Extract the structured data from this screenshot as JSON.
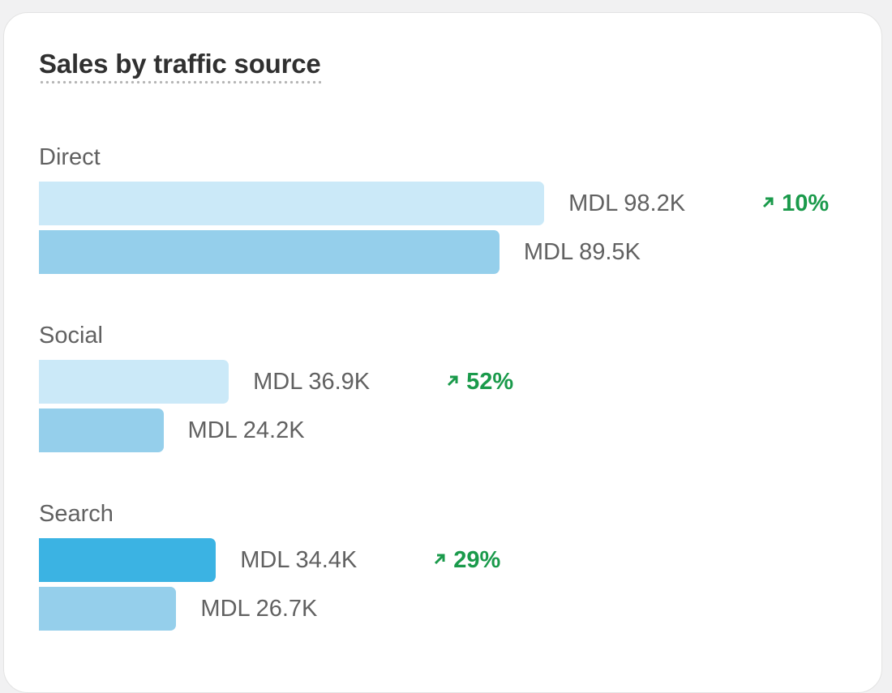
{
  "chart_data": {
    "type": "bar",
    "orientation": "horizontal",
    "title": "Sales by traffic source",
    "currency": "MDL",
    "categories": [
      "Direct",
      "Social",
      "Search"
    ],
    "series": [
      {
        "values": [
          98.2,
          36.9,
          34.4
        ],
        "labels": [
          "MDL 98.2K",
          "MDL 36.9K",
          "MDL 34.4K"
        ]
      },
      {
        "values": [
          89.5,
          24.2,
          26.7
        ],
        "labels": [
          "MDL 89.5K",
          "MDL 24.2K",
          "MDL 26.7K"
        ]
      }
    ],
    "changes": [
      "10%",
      "52%",
      "29%"
    ],
    "change_direction": [
      "up",
      "up",
      "up"
    ],
    "highlighted_category": "Search",
    "colors": {
      "current": "#cbe9f8",
      "previous": "#95cfeb",
      "highlight": "#3bb3e3",
      "positive": "#1a9a4b"
    },
    "grid": false
  }
}
